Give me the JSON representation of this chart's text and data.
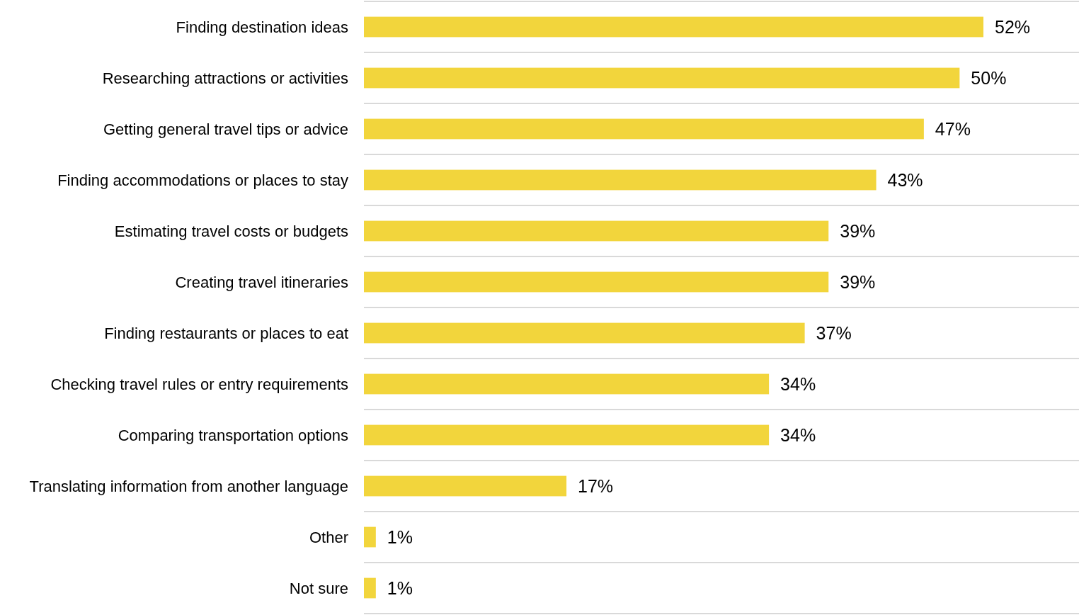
{
  "chart_data": {
    "type": "bar",
    "orientation": "horizontal",
    "categories": [
      "Finding destination ideas",
      "Researching attractions or activities",
      "Getting general travel tips or advice",
      "Finding accommodations or places to stay",
      "Estimating travel costs or budgets",
      "Creating travel itineraries",
      "Finding restaurants or places to eat",
      "Checking travel rules or entry requirements",
      "Comparing transportation options",
      "Translating information from another language",
      "Other",
      "Not sure"
    ],
    "values": [
      52,
      50,
      47,
      43,
      39,
      39,
      37,
      34,
      34,
      17,
      1,
      1
    ],
    "value_labels": [
      "52%",
      "50%",
      "47%",
      "43%",
      "39%",
      "39%",
      "37%",
      "34%",
      "34%",
      "17%",
      "1%",
      "1%"
    ],
    "color": "#f2d53c",
    "grid": "y",
    "tick_labels": "y"
  }
}
